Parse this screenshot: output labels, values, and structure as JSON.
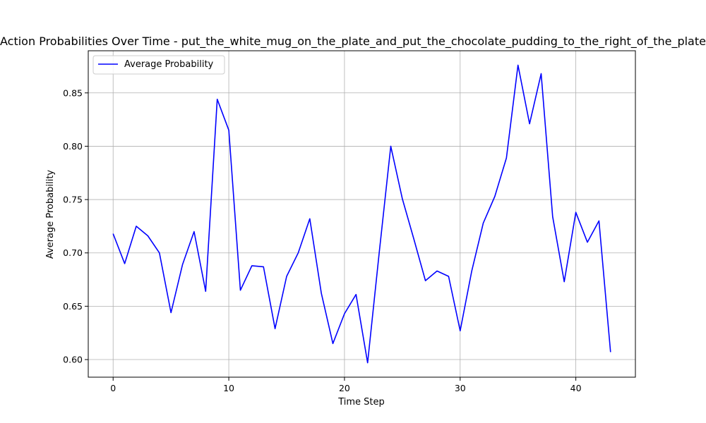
{
  "chart_data": {
    "type": "line",
    "title": "Action Probabilities Over Time - put_the_white_mug_on_the_plate_and_put_the_chocolate_pudding_to_the_right_of_the_plate",
    "xlabel": "Time Step",
    "ylabel": "Average Probability",
    "xlim": [
      -2.15,
      45.15
    ],
    "ylim": [
      0.5835,
      0.8895
    ],
    "xticks": [
      0,
      10,
      20,
      30,
      40
    ],
    "yticks": [
      0.6,
      0.65,
      0.7,
      0.75,
      0.8,
      0.85
    ],
    "grid": true,
    "legend_position": "top-left",
    "series": [
      {
        "name": "Average Probability",
        "color": "#0000ff",
        "x": [
          0,
          1,
          2,
          3,
          4,
          5,
          6,
          7,
          8,
          9,
          10,
          11,
          12,
          13,
          14,
          15,
          16,
          17,
          18,
          19,
          20,
          21,
          22,
          23,
          24,
          25,
          26,
          27,
          28,
          29,
          30,
          31,
          32,
          33,
          34,
          35,
          36,
          37,
          38,
          39,
          40,
          41,
          42,
          43
        ],
        "values": [
          0.718,
          0.69,
          0.725,
          0.716,
          0.7,
          0.644,
          0.689,
          0.72,
          0.664,
          0.844,
          0.815,
          0.665,
          0.688,
          0.687,
          0.629,
          0.678,
          0.7,
          0.732,
          0.662,
          0.615,
          0.643,
          0.661,
          0.597,
          0.7,
          0.8,
          0.751,
          0.713,
          0.674,
          0.683,
          0.678,
          0.627,
          0.683,
          0.728,
          0.753,
          0.789,
          0.876,
          0.821,
          0.868,
          0.734,
          0.673,
          0.738,
          0.71,
          0.73,
          0.607
        ]
      }
    ]
  }
}
